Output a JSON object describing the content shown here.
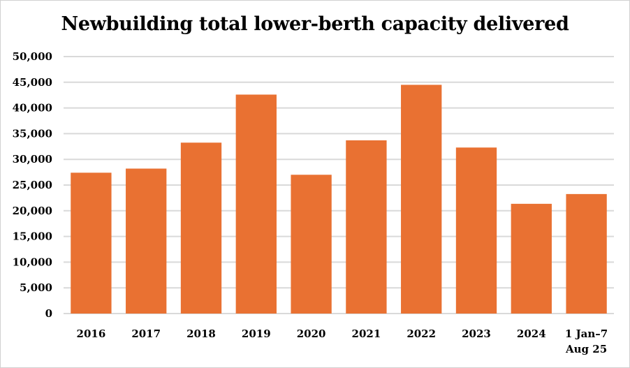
{
  "chart_data": {
    "type": "bar",
    "title": "Newbuilding total lower-berth capacity delivered",
    "categories": [
      "2016",
      "2017",
      "2018",
      "2019",
      "2020",
      "2021",
      "2022",
      "2023",
      "2024",
      "1 Jan–7 Aug 25"
    ],
    "category_lines": [
      [
        "2016"
      ],
      [
        "2017"
      ],
      [
        "2018"
      ],
      [
        "2019"
      ],
      [
        "2020"
      ],
      [
        "2021"
      ],
      [
        "2022"
      ],
      [
        "2023"
      ],
      [
        "2024"
      ],
      [
        "1 Jan–7",
        "Aug 25"
      ]
    ],
    "values": [
      27400,
      28200,
      33250,
      42600,
      27000,
      33700,
      44500,
      32300,
      21350,
      23250
    ],
    "ylim": [
      0,
      50000
    ],
    "yticks": [
      0,
      5000,
      10000,
      15000,
      20000,
      25000,
      30000,
      35000,
      40000,
      45000,
      50000
    ],
    "ytick_labels": [
      "0",
      "5,000",
      "10,000",
      "15,000",
      "20,000",
      "25,000",
      "30,000",
      "35,000",
      "40,000",
      "45,000",
      "50,000"
    ],
    "xlabel": "",
    "ylabel": "",
    "grid": true,
    "legend": "none",
    "bar_color": "#E97132",
    "grid_color": "#D9D9D9"
  }
}
